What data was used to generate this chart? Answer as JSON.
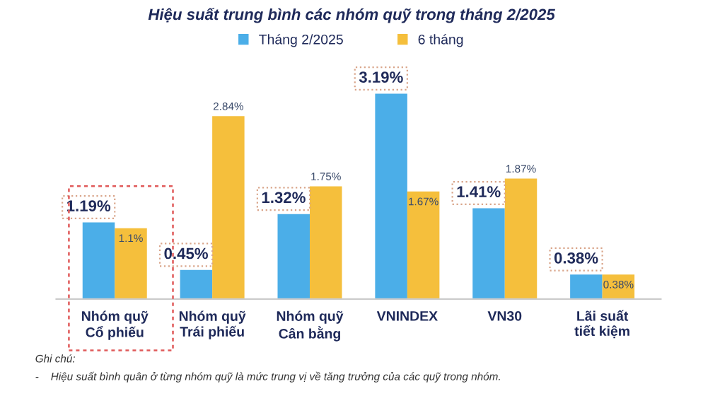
{
  "chart_data": {
    "type": "bar",
    "title": "Hiệu suất trung bình các nhóm quỹ trong tháng 2/2025",
    "categories": [
      "Nhóm quỹ\nCổ phiếu",
      "Nhóm quỹ\nTrái phiếu",
      "Nhóm quỹ\nCân bằng",
      "VNINDEX",
      "VN30",
      "Lãi suất\ntiết kiệm"
    ],
    "series": [
      {
        "name": "Tháng 2/2025",
        "color": "#4baee8",
        "values": [
          1.19,
          0.45,
          1.32,
          3.19,
          1.41,
          0.38
        ],
        "value_labels": [
          "1.19%",
          "0.45%",
          "1.32%",
          "3.19%",
          "1.41%",
          "0.38%"
        ]
      },
      {
        "name": "6 tháng",
        "color": "#f5bf3c",
        "values": [
          1.1,
          2.84,
          1.75,
          1.67,
          1.87,
          0.38
        ],
        "value_labels": [
          "1.1%",
          "2.84%",
          "1.75%",
          "1.67%",
          "1.87%",
          "0.38%"
        ]
      }
    ],
    "legend": "top",
    "grid": false,
    "annotations": [
      "Ghi chú:",
      "-    Hiệu suất bình quân ở từng nhóm quỹ là mức trung vị về tăng trưởng của các quỹ trong nhóm."
    ]
  }
}
